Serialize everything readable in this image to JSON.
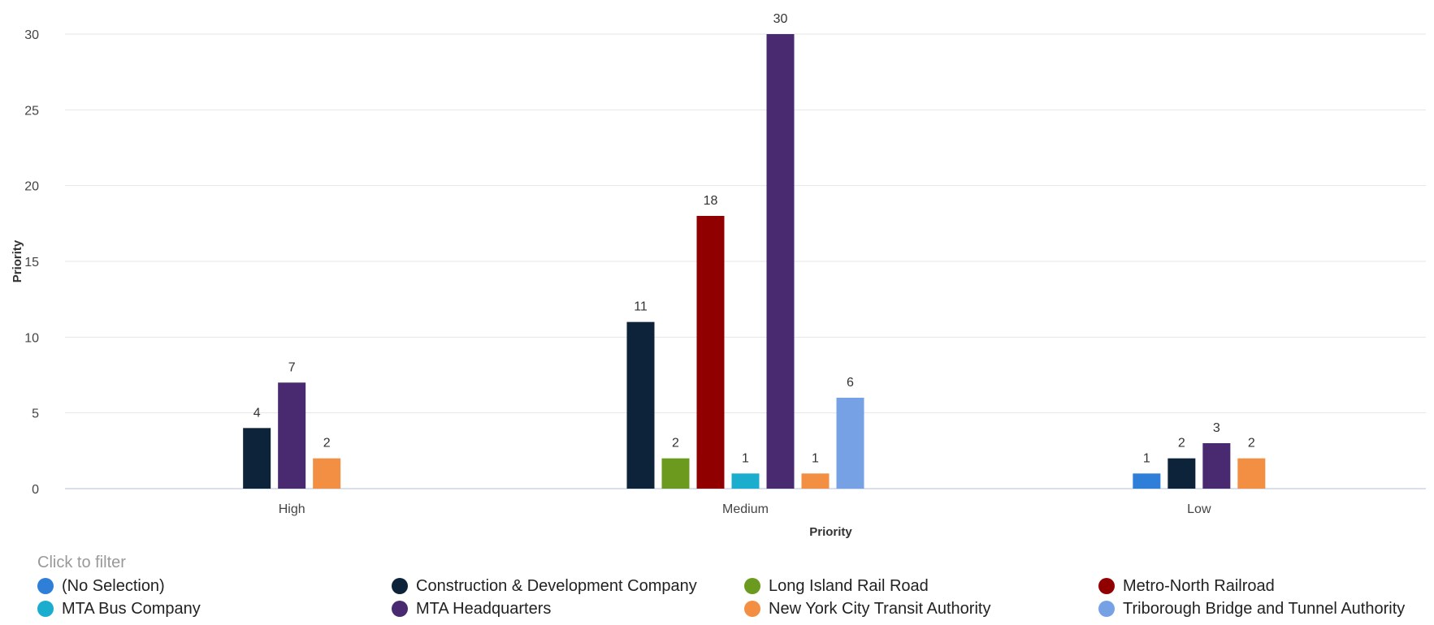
{
  "chart_data": {
    "type": "bar",
    "title": "",
    "xlabel": "Priority",
    "ylabel": "Priority",
    "ylim": [
      0,
      30
    ],
    "yticks": [
      0,
      5,
      10,
      15,
      20,
      25,
      30
    ],
    "categories": [
      "High",
      "Medium",
      "Low"
    ],
    "grid": true,
    "legend_position": "bottom",
    "series": [
      {
        "name": "(No Selection)",
        "color": "#2f7ed8",
        "values": [
          null,
          null,
          1
        ]
      },
      {
        "name": "Construction & Development Company",
        "color": "#0d233a",
        "values": [
          4,
          11,
          2
        ]
      },
      {
        "name": "Long Island Rail Road",
        "color": "#6b9a1f",
        "values": [
          null,
          2,
          null
        ]
      },
      {
        "name": "Metro-North Railroad",
        "color": "#910000",
        "values": [
          null,
          18,
          null
        ]
      },
      {
        "name": "MTA Bus Company",
        "color": "#1aadce",
        "values": [
          null,
          1,
          null
        ]
      },
      {
        "name": "MTA Headquarters",
        "color": "#492970",
        "values": [
          7,
          30,
          3
        ]
      },
      {
        "name": "New York City Transit Authority",
        "color": "#f28f43",
        "values": [
          2,
          1,
          2
        ]
      },
      {
        "name": "Triborough Bridge and Tunnel Authority",
        "color": "#77a1e5",
        "values": [
          null,
          6,
          null
        ]
      }
    ]
  },
  "legend": {
    "title": "Click to filter"
  }
}
